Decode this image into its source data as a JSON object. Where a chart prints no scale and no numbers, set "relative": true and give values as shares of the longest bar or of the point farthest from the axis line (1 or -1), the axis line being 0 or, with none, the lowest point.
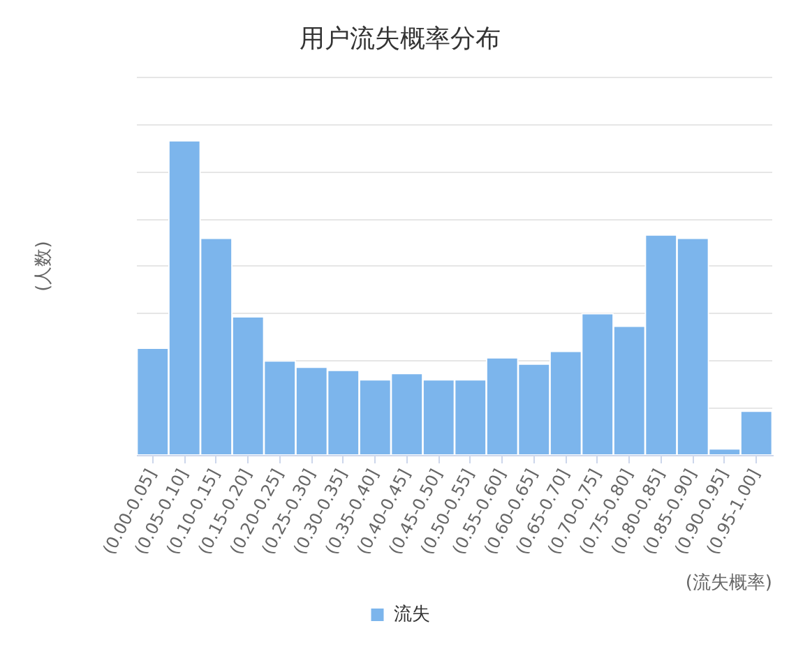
{
  "chart_data": {
    "type": "bar",
    "title": "用户流失概率分布",
    "ylabel": "(人数)",
    "xlabel": "(流失概率)",
    "categories": [
      "(0.00-0.05]",
      "(0.05-0.10]",
      "(0.10-0.15]",
      "(0.15-0.20]",
      "(0.20-0.25]",
      "(0.25-0.30]",
      "(0.30-0.35]",
      "(0.35-0.40]",
      "(0.40-0.45]",
      "(0.45-0.50]",
      "(0.50-0.55]",
      "(0.55-0.60]",
      "(0.60-0.65]",
      "(0.65-0.70]",
      "(0.70-0.75]",
      "(0.75-0.80]",
      "(0.80-0.85]",
      "(0.85-0.90]",
      "(0.90-0.95]",
      "(0.95-1.00]"
    ],
    "series": [
      {
        "name": "流失",
        "color": "#7cb5ec",
        "values": [
          0.34,
          1,
          0.69,
          0.44,
          0.3,
          0.28,
          0.27,
          0.24,
          0.26,
          0.24,
          0.24,
          0.31,
          0.29,
          0.33,
          0.45,
          0.41,
          0.7,
          0.69,
          0.02,
          0.14
        ]
      }
    ],
    "relative": true,
    "grid": "y",
    "legend": "bottom"
  }
}
